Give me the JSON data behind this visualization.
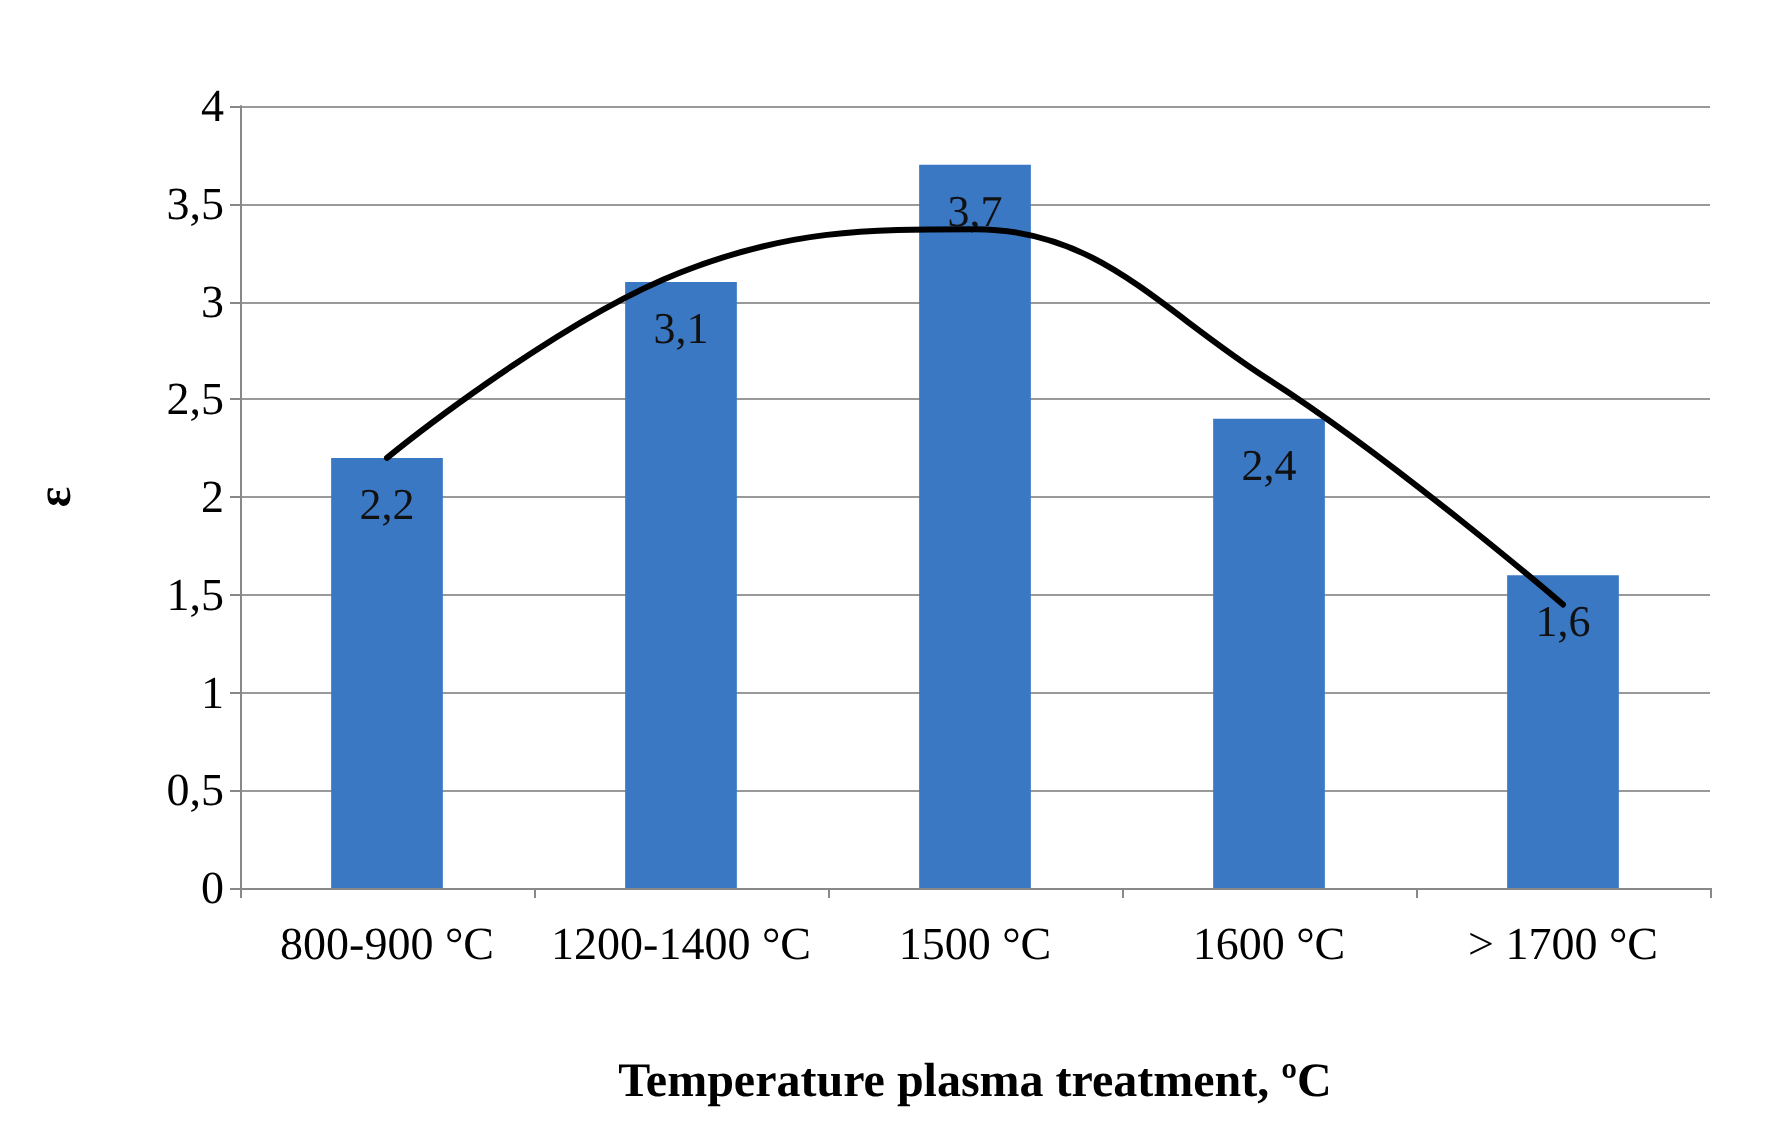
{
  "chart_data": {
    "type": "bar",
    "xlabel": "Temperature plasma treatment, ºC",
    "ylabel": "ε",
    "categories": [
      "800-900 °C",
      "1200-1400 °C",
      "1500 °C",
      "1600 °C",
      "> 1700 °C"
    ],
    "series": [
      {
        "color": "#3b78c4",
        "values": [
          2.2,
          3.1,
          3.7,
          2.4,
          1.6
        ],
        "value_labels": [
          "2,2",
          "3,1",
          "3,7",
          "2,4",
          "1,6"
        ]
      },
      {
        "type": "line",
        "color": "#000000",
        "values": [
          2.2,
          3.15,
          3.37,
          2.6,
          1.45
        ],
        "marker": "none",
        "line_style": "solid"
      }
    ],
    "ylim": [
      0,
      4
    ],
    "yticks": [
      0,
      {
        "value": 0.5,
        "label": "0,5"
      },
      1,
      {
        "value": 1.5,
        "label": "1,5"
      },
      2,
      {
        "value": 2.5,
        "label": "2,5"
      },
      3,
      {
        "value": 3.5,
        "label": "3,5"
      },
      4
    ],
    "grid": "y"
  }
}
